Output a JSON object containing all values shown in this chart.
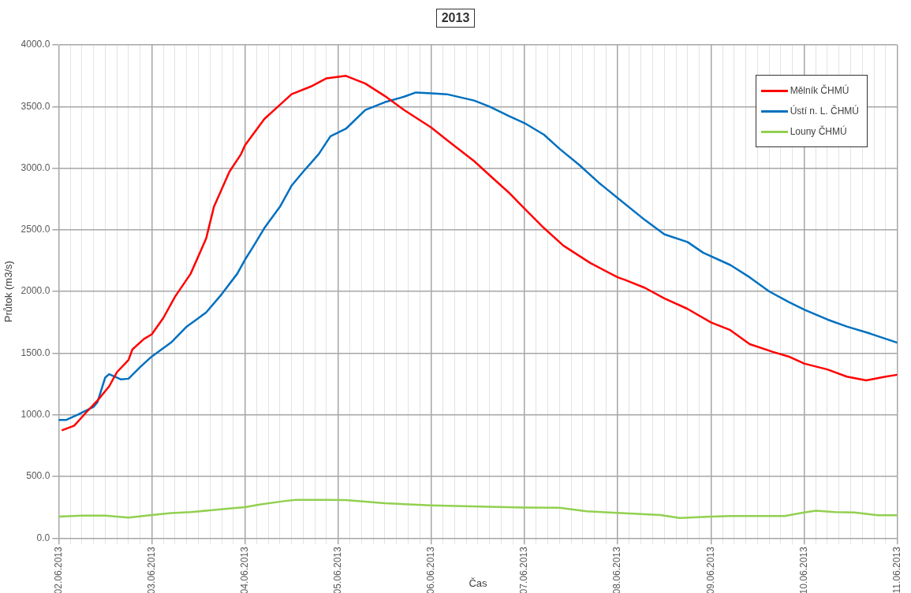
{
  "chart_data": {
    "type": "line",
    "title": "2013",
    "xlabel": "Čas",
    "ylabel": "Průtok (m3/s)",
    "series": [
      {
        "name": "Mělník ČHMÚ",
        "color": "#ff0000",
        "x": [
          "2013-06-02T01:00",
          "2013-06-02T04:00",
          "2013-06-02T07:00",
          "2013-06-02T10:00",
          "2013-06-02T13:00",
          "2013-06-02T15:00",
          "2013-06-02T18:00",
          "2013-06-02T19:00",
          "2013-06-02T22:00",
          "2013-06-03T00:00",
          "2013-06-03T03:00",
          "2013-06-03T06:00",
          "2013-06-03T10:00",
          "2013-06-03T14:00",
          "2013-06-03T16:00",
          "2013-06-03T20:00",
          "2013-06-03T23:00",
          "2013-06-04T00:00",
          "2013-06-04T05:00",
          "2013-06-04T09:00",
          "2013-06-04T12:00",
          "2013-06-04T17:00",
          "2013-06-04T21:00",
          "2013-06-05T02:00",
          "2013-06-05T07:00",
          "2013-06-05T12:00",
          "2013-06-05T17:00",
          "2013-06-06T00:00",
          "2013-06-06T04:00",
          "2013-06-06T11:00",
          "2013-06-06T15:00",
          "2013-06-06T20:00",
          "2013-06-07T00:00",
          "2013-06-07T05:00",
          "2013-06-07T10:00",
          "2013-06-07T17:00",
          "2013-06-08T00:00",
          "2013-06-08T02:00",
          "2013-06-08T07:00",
          "2013-06-08T12:00",
          "2013-06-08T18:00",
          "2013-06-09T00:00",
          "2013-06-09T05:00",
          "2013-06-09T10:00",
          "2013-06-09T16:00",
          "2013-06-09T20:00",
          "2013-06-10T00:00",
          "2013-06-10T06:00",
          "2013-06-10T11:00",
          "2013-06-10T16:00",
          "2013-06-10T21:00",
          "2013-06-11T00:00"
        ],
        "values": [
          876,
          911,
          1016,
          1116,
          1230,
          1345,
          1445,
          1530,
          1616,
          1653,
          1787,
          1959,
          2144,
          2430,
          2687,
          2972,
          3115,
          3186,
          3400,
          3514,
          3600,
          3663,
          3729,
          3749,
          3686,
          3586,
          3472,
          3329,
          3229,
          3058,
          2943,
          2801,
          2672,
          2515,
          2372,
          2230,
          2115,
          2093,
          2030,
          1944,
          1859,
          1750,
          1687,
          1573,
          1510,
          1473,
          1416,
          1368,
          1310,
          1279,
          1310,
          1325
        ]
      },
      {
        "name": "Ústí n. L. ČHMÚ",
        "color": "#0070c0",
        "x": [
          "2013-06-02T00:00",
          "2013-06-02T02:00",
          "2013-06-02T05:00",
          "2013-06-02T09:00",
          "2013-06-02T10:00",
          "2013-06-02T12:00",
          "2013-06-02T13:00",
          "2013-06-02T16:00",
          "2013-06-02T18:00",
          "2013-06-02T21:00",
          "2013-06-03T00:00",
          "2013-06-03T05:00",
          "2013-06-03T09:00",
          "2013-06-03T14:00",
          "2013-06-03T18:00",
          "2013-06-03T22:00",
          "2013-06-04T00:00",
          "2013-06-04T02:00",
          "2013-06-04T05:00",
          "2013-06-04T09:00",
          "2013-06-04T12:00",
          "2013-06-04T15:00",
          "2013-06-04T17:00",
          "2013-06-04T19:00",
          "2013-06-04T22:00",
          "2013-06-05T02:00",
          "2013-06-05T07:00",
          "2013-06-05T12:00",
          "2013-06-05T17:00",
          "2013-06-05T20:00",
          "2013-06-06T00:00",
          "2013-06-06T04:00",
          "2013-06-06T11:00",
          "2013-06-06T15:00",
          "2013-06-06T20:00",
          "2013-06-07T00:00",
          "2013-06-07T05:00",
          "2013-06-07T09:00",
          "2013-06-07T14:00",
          "2013-06-07T19:00",
          "2013-06-08T00:00",
          "2013-06-08T07:00",
          "2013-06-08T12:00",
          "2013-06-08T18:00",
          "2013-06-08T22:00",
          "2013-06-09T05:00",
          "2013-06-09T10:00",
          "2013-06-09T15:00",
          "2013-06-09T20:00",
          "2013-06-10T00:00",
          "2013-06-10T06:00",
          "2013-06-10T11:00",
          "2013-06-10T17:00",
          "2013-06-11T00:00"
        ],
        "values": [
          959,
          959,
          1002,
          1065,
          1102,
          1302,
          1330,
          1288,
          1293,
          1387,
          1473,
          1587,
          1716,
          1830,
          1978,
          2144,
          2258,
          2358,
          2515,
          2687,
          2858,
          2972,
          3043,
          3115,
          3258,
          3320,
          3472,
          3535,
          3580,
          3614,
          3608,
          3600,
          3549,
          3500,
          3423,
          3366,
          3272,
          3158,
          3029,
          2886,
          2758,
          2580,
          2464,
          2401,
          2315,
          2215,
          2115,
          2001,
          1916,
          1853,
          1773,
          1716,
          1659,
          1585
        ]
      },
      {
        "name": "Louny ČHMÚ",
        "color": "#92d050",
        "x": [
          "2013-06-02T00:00",
          "2013-06-02T06:00",
          "2013-06-02T12:00",
          "2013-06-02T18:00",
          "2013-06-03T00:00",
          "2013-06-03T05:00",
          "2013-06-03T10:00",
          "2013-06-03T15:00",
          "2013-06-03T21:00",
          "2013-06-04T00:00",
          "2013-06-04T04:00",
          "2013-06-04T10:00",
          "2013-06-04T13:00",
          "2013-06-04T21:00",
          "2013-06-05T02:00",
          "2013-06-05T12:00",
          "2013-06-06T00:00",
          "2013-06-06T15:00",
          "2013-06-07T00:00",
          "2013-06-07T09:00",
          "2013-06-07T16:00",
          "2013-06-08T01:00",
          "2013-06-08T11:00",
          "2013-06-08T16:00",
          "2013-06-09T00:00",
          "2013-06-09T05:00",
          "2013-06-09T19:00",
          "2013-06-10T00:00",
          "2013-06-10T03:00",
          "2013-06-10T08:00",
          "2013-06-10T13:00",
          "2013-06-10T19:00",
          "2013-06-11T00:00"
        ],
        "values": [
          174,
          183,
          183,
          166,
          188,
          203,
          211,
          226,
          243,
          251,
          274,
          300,
          311,
          311,
          308,
          283,
          266,
          254,
          248,
          246,
          217,
          203,
          188,
          163,
          174,
          180,
          180,
          208,
          223,
          211,
          208,
          186,
          186
        ]
      }
    ],
    "xlim": [
      "2013-06-02",
      "2013-06-11"
    ],
    "xticks": [
      {
        "value": "2013-06-02",
        "label": "02.06.2013"
      },
      {
        "value": "2013-06-02T03:00",
        "label": null
      },
      {
        "value": "2013-06-02T06:00",
        "label": null
      },
      {
        "value": "2013-06-02T09:00",
        "label": null
      },
      {
        "value": "2013-06-02T12:00",
        "label": null
      },
      {
        "value": "2013-06-02T15:00",
        "label": null
      },
      {
        "value": "2013-06-02T18:00",
        "label": null
      },
      {
        "value": "2013-06-02T21:00",
        "label": null
      },
      {
        "value": "2013-06-03",
        "label": "03.06.2013"
      },
      {
        "value": "2013-06-03T03:00",
        "label": null
      },
      {
        "value": "2013-06-03T06:00",
        "label": null
      },
      {
        "value": "2013-06-03T09:00",
        "label": null
      },
      {
        "value": "2013-06-03T12:00",
        "label": null
      },
      {
        "value": "2013-06-03T15:00",
        "label": null
      },
      {
        "value": "2013-06-03T18:00",
        "label": null
      },
      {
        "value": "2013-06-03T21:00",
        "label": null
      },
      {
        "value": "2013-06-04",
        "label": "04.06.2013"
      },
      {
        "value": "2013-06-04T03:00",
        "label": null
      },
      {
        "value": "2013-06-04T06:00",
        "label": null
      },
      {
        "value": "2013-06-04T09:00",
        "label": null
      },
      {
        "value": "2013-06-04T12:00",
        "label": null
      },
      {
        "value": "2013-06-04T15:00",
        "label": null
      },
      {
        "value": "2013-06-04T18:00",
        "label": null
      },
      {
        "value": "2013-06-04T21:00",
        "label": null
      },
      {
        "value": "2013-06-05",
        "label": "05.06.2013"
      },
      {
        "value": "2013-06-05T03:00",
        "label": null
      },
      {
        "value": "2013-06-05T06:00",
        "label": null
      },
      {
        "value": "2013-06-05T09:00",
        "label": null
      },
      {
        "value": "2013-06-05T12:00",
        "label": null
      },
      {
        "value": "2013-06-05T15:00",
        "label": null
      },
      {
        "value": "2013-06-05T18:00",
        "label": null
      },
      {
        "value": "2013-06-05T21:00",
        "label": null
      },
      {
        "value": "2013-06-06",
        "label": "06.06.2013"
      },
      {
        "value": "2013-06-06T03:00",
        "label": null
      },
      {
        "value": "2013-06-06T06:00",
        "label": null
      },
      {
        "value": "2013-06-06T09:00",
        "label": null
      },
      {
        "value": "2013-06-06T12:00",
        "label": null
      },
      {
        "value": "2013-06-06T15:00",
        "label": null
      },
      {
        "value": "2013-06-06T18:00",
        "label": null
      },
      {
        "value": "2013-06-06T21:00",
        "label": null
      },
      {
        "value": "2013-06-07",
        "label": "07.06.2013"
      },
      {
        "value": "2013-06-07T03:00",
        "label": null
      },
      {
        "value": "2013-06-07T06:00",
        "label": null
      },
      {
        "value": "2013-06-07T09:00",
        "label": null
      },
      {
        "value": "2013-06-07T12:00",
        "label": null
      },
      {
        "value": "2013-06-07T15:00",
        "label": null
      },
      {
        "value": "2013-06-07T18:00",
        "label": null
      },
      {
        "value": "2013-06-07T21:00",
        "label": null
      },
      {
        "value": "2013-06-08",
        "label": "08.06.2013"
      },
      {
        "value": "2013-06-08T03:00",
        "label": null
      },
      {
        "value": "2013-06-08T06:00",
        "label": null
      },
      {
        "value": "2013-06-08T09:00",
        "label": null
      },
      {
        "value": "2013-06-08T12:00",
        "label": null
      },
      {
        "value": "2013-06-08T15:00",
        "label": null
      },
      {
        "value": "2013-06-08T18:00",
        "label": null
      },
      {
        "value": "2013-06-08T21:00",
        "label": null
      },
      {
        "value": "2013-06-09",
        "label": "09.06.2013"
      },
      {
        "value": "2013-06-09T03:00",
        "label": null
      },
      {
        "value": "2013-06-09T06:00",
        "label": null
      },
      {
        "value": "2013-06-09T09:00",
        "label": null
      },
      {
        "value": "2013-06-09T12:00",
        "label": null
      },
      {
        "value": "2013-06-09T15:00",
        "label": null
      },
      {
        "value": "2013-06-09T18:00",
        "label": null
      },
      {
        "value": "2013-06-09T21:00",
        "label": null
      },
      {
        "value": "2013-06-10",
        "label": "10.06.2013"
      },
      {
        "value": "2013-06-10T03:00",
        "label": null
      },
      {
        "value": "2013-06-10T06:00",
        "label": null
      },
      {
        "value": "2013-06-10T09:00",
        "label": null
      },
      {
        "value": "2013-06-10T12:00",
        "label": null
      },
      {
        "value": "2013-06-10T15:00",
        "label": null
      },
      {
        "value": "2013-06-10T18:00",
        "label": null
      },
      {
        "value": "2013-06-10T21:00",
        "label": null
      },
      {
        "value": "2013-06-11",
        "label": "11.06.2013"
      }
    ],
    "ylim": [
      0,
      4000
    ],
    "yticks": [
      {
        "value": 0,
        "label": "0.0"
      },
      {
        "value": 500,
        "label": "500.0"
      },
      {
        "value": 1000,
        "label": "1000.0"
      },
      {
        "value": 1500,
        "label": "1500.0"
      },
      {
        "value": 2000,
        "label": "2000.0"
      },
      {
        "value": 2500,
        "label": "2500.0"
      },
      {
        "value": 3000,
        "label": "3000.0"
      },
      {
        "value": 3500,
        "label": "3500.0"
      },
      {
        "value": 4000,
        "label": "4000.0"
      }
    ],
    "grid": true,
    "legend": "top right",
    "marker": "none",
    "line_style": "solid"
  }
}
